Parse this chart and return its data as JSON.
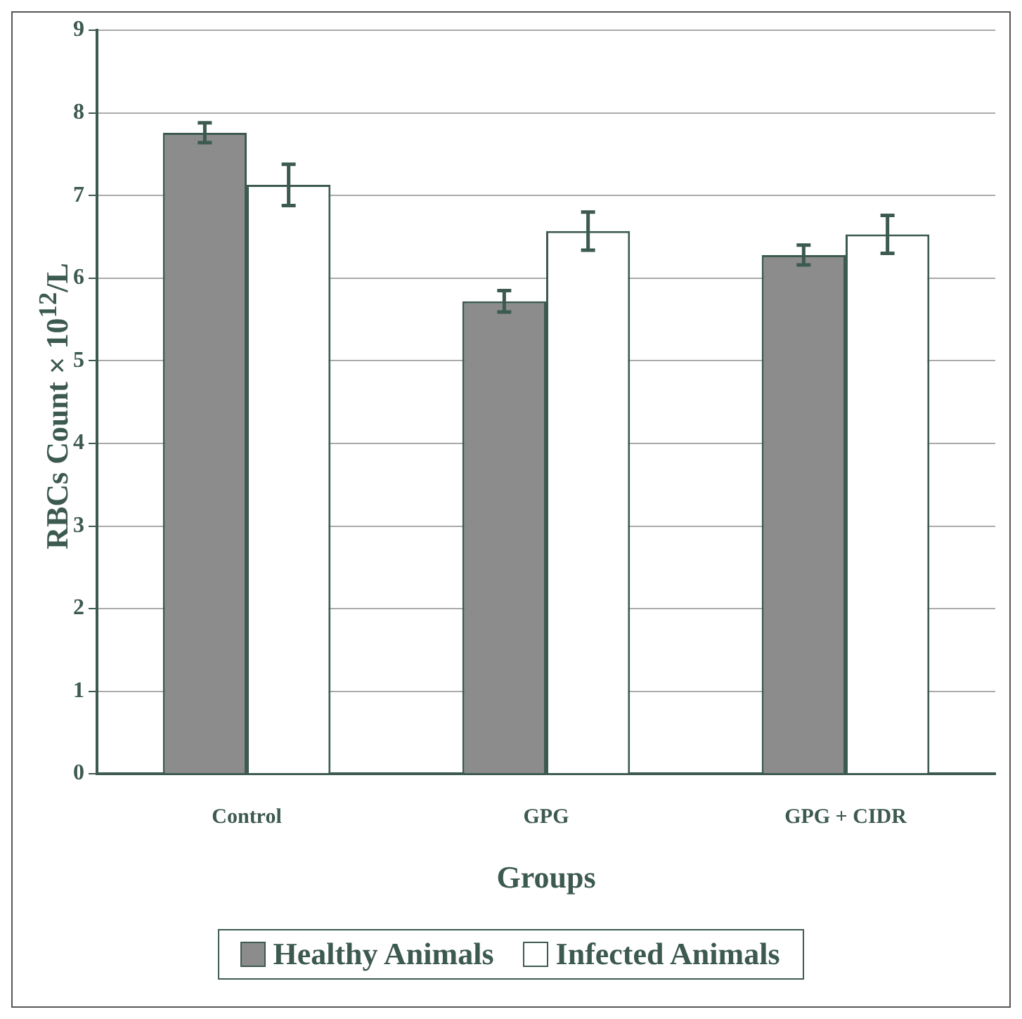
{
  "chart_data": {
    "type": "bar",
    "xlabel": "Groups",
    "ylabel": "RBCs Count × 10$^{12}$/L",
    "categories": [
      "Control",
      "GPG",
      "GPG + CIDR"
    ],
    "series": [
      {
        "name": "Healthy Animals",
        "color": "#8c8c8c",
        "values": [
          7.76,
          5.72,
          6.28
        ],
        "errors": [
          0.12,
          0.13,
          0.12
        ]
      },
      {
        "name": "Infected Animals",
        "color": "#ffffff",
        "values": [
          7.13,
          6.57,
          6.53
        ],
        "errors": [
          0.25,
          0.23,
          0.23
        ]
      }
    ],
    "ylim": [
      0,
      9
    ],
    "yticks": [
      0,
      1,
      2,
      3,
      4,
      5,
      6,
      7,
      8,
      9
    ],
    "grid": "y",
    "legend": "bottom"
  }
}
